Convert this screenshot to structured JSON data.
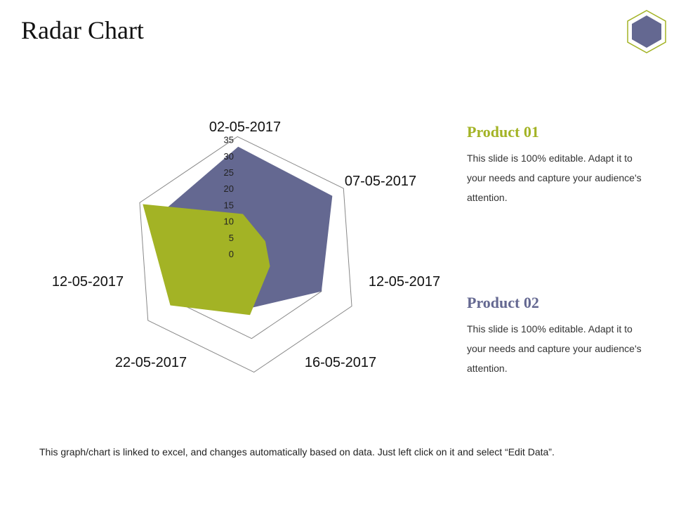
{
  "slide": {
    "title": "Radar Chart",
    "footer": "This graph/chart is linked to excel, and changes automatically  based on data. Just left click on it and select “Edit Data”."
  },
  "legend": [
    {
      "title": "Product 01",
      "color": "#a3b325",
      "text": "This slide is 100% editable. Adapt it to your needs and capture your audience's attention."
    },
    {
      "title": "Product 02",
      "color": "#646891",
      "text": "This slide is 100% editable. Adapt it to your needs and capture your audience's attention."
    }
  ],
  "colors": {
    "product_01": "#a3b325",
    "product_02": "#646891",
    "badge_fill": "#646891",
    "badge_outline": "#a3b325",
    "grid": "#888888"
  },
  "chart_data": {
    "type": "radar",
    "categories": [
      "02-05-2017",
      "07-05-2017",
      "12-05-2017",
      "16-05-2017",
      "22-05-2017",
      "12-05-2017"
    ],
    "rlim": [
      0,
      35
    ],
    "ticks": [
      0,
      5,
      10,
      15,
      20,
      25,
      30,
      35
    ],
    "series": [
      {
        "name": "Product 01",
        "values": [
          12,
          7,
          8,
          18,
          27,
          34
        ],
        "color": "#a3b325"
      },
      {
        "name": "Product 02",
        "values": [
          32,
          31,
          25,
          16,
          18,
          28
        ],
        "color": "#646891"
      }
    ]
  }
}
